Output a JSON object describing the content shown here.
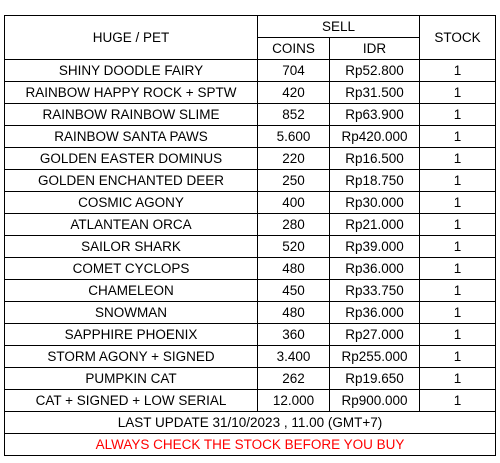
{
  "headers": {
    "pet": "HUGE / PET",
    "sell": "SELL",
    "coins": "COINS",
    "idr": "IDR",
    "stock": "STOCK"
  },
  "rows": [
    {
      "name": "SHINY DOODLE FAIRY",
      "coins": "704",
      "idr": "Rp52.800",
      "stock": "1"
    },
    {
      "name": "RAINBOW HAPPY ROCK + SPTW",
      "coins": "420",
      "idr": "Rp31.500",
      "stock": "1"
    },
    {
      "name": "RAINBOW RAINBOW SLIME",
      "coins": "852",
      "idr": "Rp63.900",
      "stock": "1"
    },
    {
      "name": "RAINBOW SANTA PAWS",
      "coins": "5.600",
      "idr": "Rp420.000",
      "stock": "1"
    },
    {
      "name": "GOLDEN EASTER DOMINUS",
      "coins": "220",
      "idr": "Rp16.500",
      "stock": "1"
    },
    {
      "name": "GOLDEN ENCHANTED DEER",
      "coins": "250",
      "idr": "Rp18.750",
      "stock": "1"
    },
    {
      "name": "COSMIC AGONY",
      "coins": "400",
      "idr": "Rp30.000",
      "stock": "1"
    },
    {
      "name": "ATLANTEAN ORCA",
      "coins": "280",
      "idr": "Rp21.000",
      "stock": "1"
    },
    {
      "name": "SAILOR SHARK",
      "coins": "520",
      "idr": "Rp39.000",
      "stock": "1"
    },
    {
      "name": "COMET CYCLOPS",
      "coins": "480",
      "idr": "Rp36.000",
      "stock": "1"
    },
    {
      "name": "CHAMELEON",
      "coins": "450",
      "idr": "Rp33.750",
      "stock": "1"
    },
    {
      "name": "SNOWMAN",
      "coins": "480",
      "idr": "Rp36.000",
      "stock": "1"
    },
    {
      "name": "SAPPHIRE PHOENIX",
      "coins": "360",
      "idr": "Rp27.000",
      "stock": "1"
    },
    {
      "name": "STORM AGONY + SIGNED",
      "coins": "3.400",
      "idr": "Rp255.000",
      "stock": "1"
    },
    {
      "name": "PUMPKIN CAT",
      "coins": "262",
      "idr": "Rp19.650",
      "stock": "1"
    },
    {
      "name": "CAT + SIGNED + LOW SERIAL",
      "coins": "12.000",
      "idr": "Rp900.000",
      "stock": "1"
    }
  ],
  "footer": {
    "last_update": "LAST UPDATE 31/10/2023 , 11.00 (GMT+7)",
    "warning": "ALWAYS CHECK THE STOCK BEFORE YOU BUY",
    "warning_color": "#ff0000"
  }
}
